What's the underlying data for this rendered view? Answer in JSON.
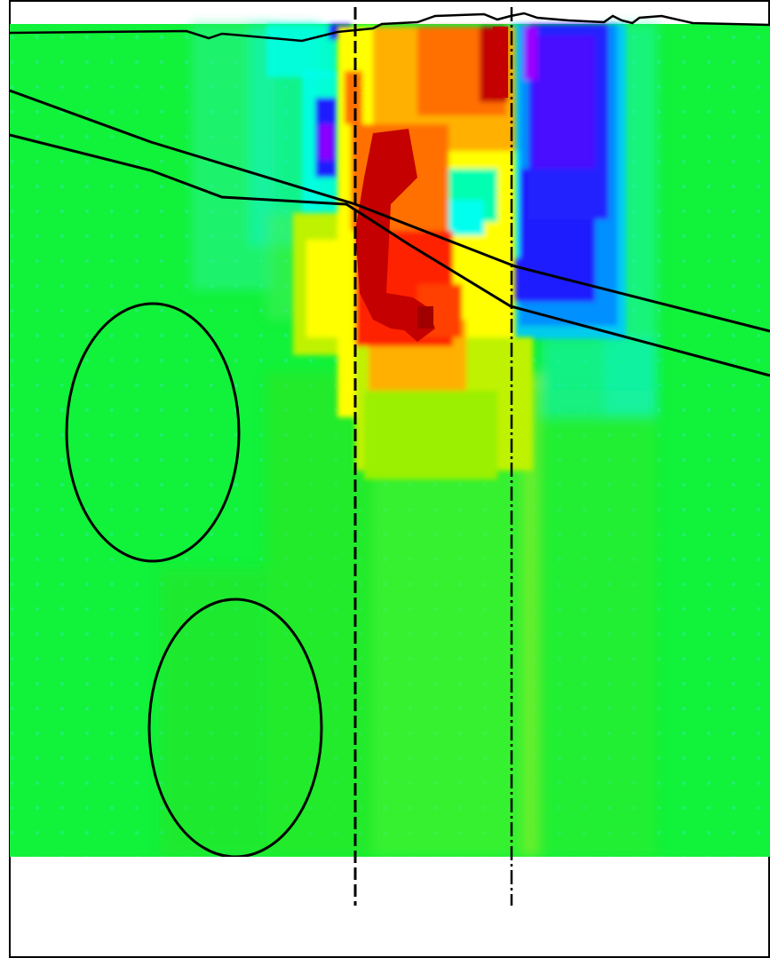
{
  "figure": {
    "kind": "heatmap-profile",
    "palette": [
      "#7a00ff",
      "#1a1aff",
      "#0088ff",
      "#00ffee",
      "#00ffb0",
      "#00ff40",
      "#30ff00",
      "#80ff00",
      "#ffff00",
      "#ffb000",
      "#ff7000",
      "#ff2000",
      "#c40000"
    ]
  },
  "colors": {
    "background": "#ffffff",
    "outline": "#000000",
    "field": "#11f23a"
  }
}
